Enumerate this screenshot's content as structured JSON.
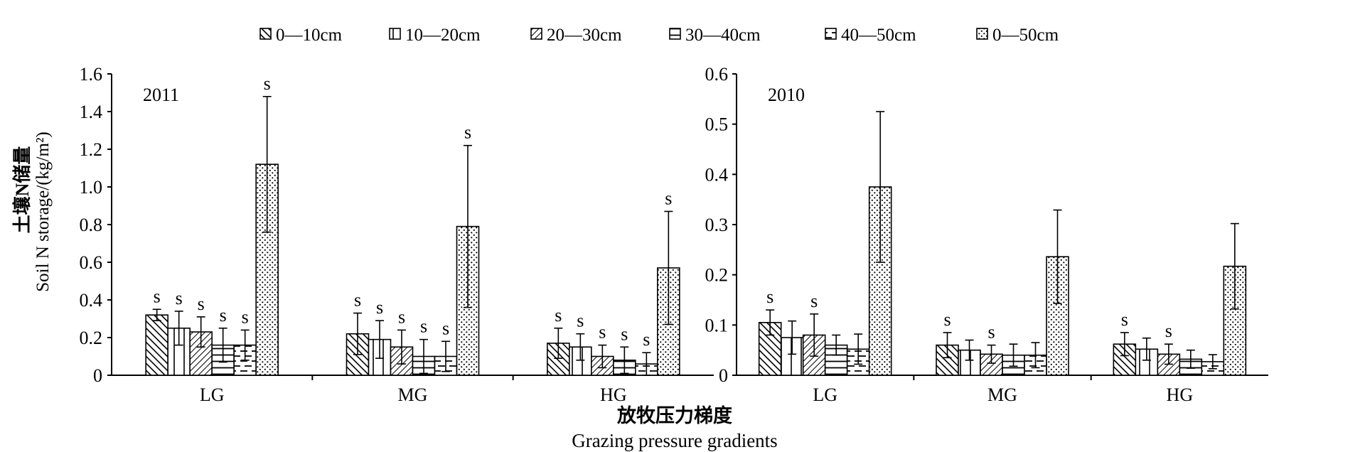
{
  "figure": {
    "y_title_cn": "土壤N储量",
    "y_title_en": "Soil N storage/(kg/m²)",
    "x_title_cn": "放牧压力梯度",
    "x_title_en": "Grazing pressure gradients"
  },
  "legend": {
    "entries": [
      {
        "label": "0—10cm",
        "pattern": "diag-back"
      },
      {
        "label": "10—20cm",
        "pattern": "vertical"
      },
      {
        "label": "20—30cm",
        "pattern": "diag-fwd"
      },
      {
        "label": "30—40cm",
        "pattern": "horizontal"
      },
      {
        "label": "40—50cm",
        "pattern": "dashed-horizontal"
      },
      {
        "label": "0—50cm",
        "pattern": "dots"
      }
    ]
  },
  "chart_data": [
    {
      "type": "bar",
      "title": "2011",
      "categories": [
        "LG",
        "MG",
        "HG"
      ],
      "ylabel": "土壤N储量 Soil N storage/(kg/m²)",
      "xlabel": "放牧压力梯度 Grazing pressure gradients",
      "ylim": [
        0,
        1.6
      ],
      "yticks": [
        "0",
        "0.2",
        "0.4",
        "0.6",
        "0.8",
        "1.0",
        "1.2",
        "1.4",
        "1.6"
      ],
      "series": [
        {
          "name": "0—10cm",
          "values": [
            0.32,
            0.22,
            0.17
          ],
          "errors": [
            0.03,
            0.11,
            0.08
          ],
          "labels": [
            "s",
            "s",
            "s"
          ]
        },
        {
          "name": "10—20cm",
          "values": [
            0.25,
            0.19,
            0.15
          ],
          "errors": [
            0.09,
            0.1,
            0.07
          ],
          "labels": [
            "s",
            "s",
            "s"
          ]
        },
        {
          "name": "20—30cm",
          "values": [
            0.23,
            0.15,
            0.1
          ],
          "errors": [
            0.08,
            0.09,
            0.06
          ],
          "labels": [
            "s",
            "s",
            "s"
          ]
        },
        {
          "name": "30—40cm",
          "values": [
            0.16,
            0.1,
            0.08
          ],
          "errors": [
            0.09,
            0.09,
            0.07
          ],
          "labels": [
            "s",
            "s",
            "s"
          ]
        },
        {
          "name": "40—50cm",
          "values": [
            0.16,
            0.1,
            0.06
          ],
          "errors": [
            0.08,
            0.08,
            0.06
          ],
          "labels": [
            "s",
            "s",
            "s"
          ]
        },
        {
          "name": "0—50cm",
          "values": [
            1.12,
            0.79,
            0.57
          ],
          "errors": [
            0.36,
            0.43,
            0.3
          ],
          "labels": [
            "s",
            "s",
            "s"
          ]
        }
      ]
    },
    {
      "type": "bar",
      "title": "2010",
      "categories": [
        "LG",
        "MG",
        "HG"
      ],
      "ylim": [
        0,
        0.6
      ],
      "yticks": [
        "0",
        "0.1",
        "0.2",
        "0.3",
        "0.4",
        "0.5",
        "0.6"
      ],
      "series": [
        {
          "name": "0—10cm",
          "values": [
            0.105,
            0.06,
            0.062
          ],
          "errors": [
            0.025,
            0.025,
            0.023
          ],
          "labels": [
            "s",
            "s",
            "s"
          ]
        },
        {
          "name": "10—20cm",
          "values": [
            0.075,
            0.05,
            0.052
          ],
          "errors": [
            0.033,
            0.02,
            0.022
          ],
          "labels": [
            "",
            "",
            ""
          ]
        },
        {
          "name": "20—30cm",
          "values": [
            0.08,
            0.042,
            0.042
          ],
          "errors": [
            0.042,
            0.018,
            0.02
          ],
          "labels": [
            "s",
            "s",
            "s"
          ]
        },
        {
          "name": "30—40cm",
          "values": [
            0.06,
            0.04,
            0.032
          ],
          "errors": [
            0.02,
            0.022,
            0.018
          ],
          "labels": [
            "",
            "",
            ""
          ]
        },
        {
          "name": "40—50cm",
          "values": [
            0.052,
            0.04,
            0.027
          ],
          "errors": [
            0.03,
            0.025,
            0.014
          ],
          "labels": [
            "",
            "",
            ""
          ]
        },
        {
          "name": "0—50cm",
          "values": [
            0.375,
            0.236,
            0.217
          ],
          "errors": [
            0.15,
            0.093,
            0.085
          ],
          "labels": [
            "",
            "",
            ""
          ]
        }
      ]
    }
  ]
}
